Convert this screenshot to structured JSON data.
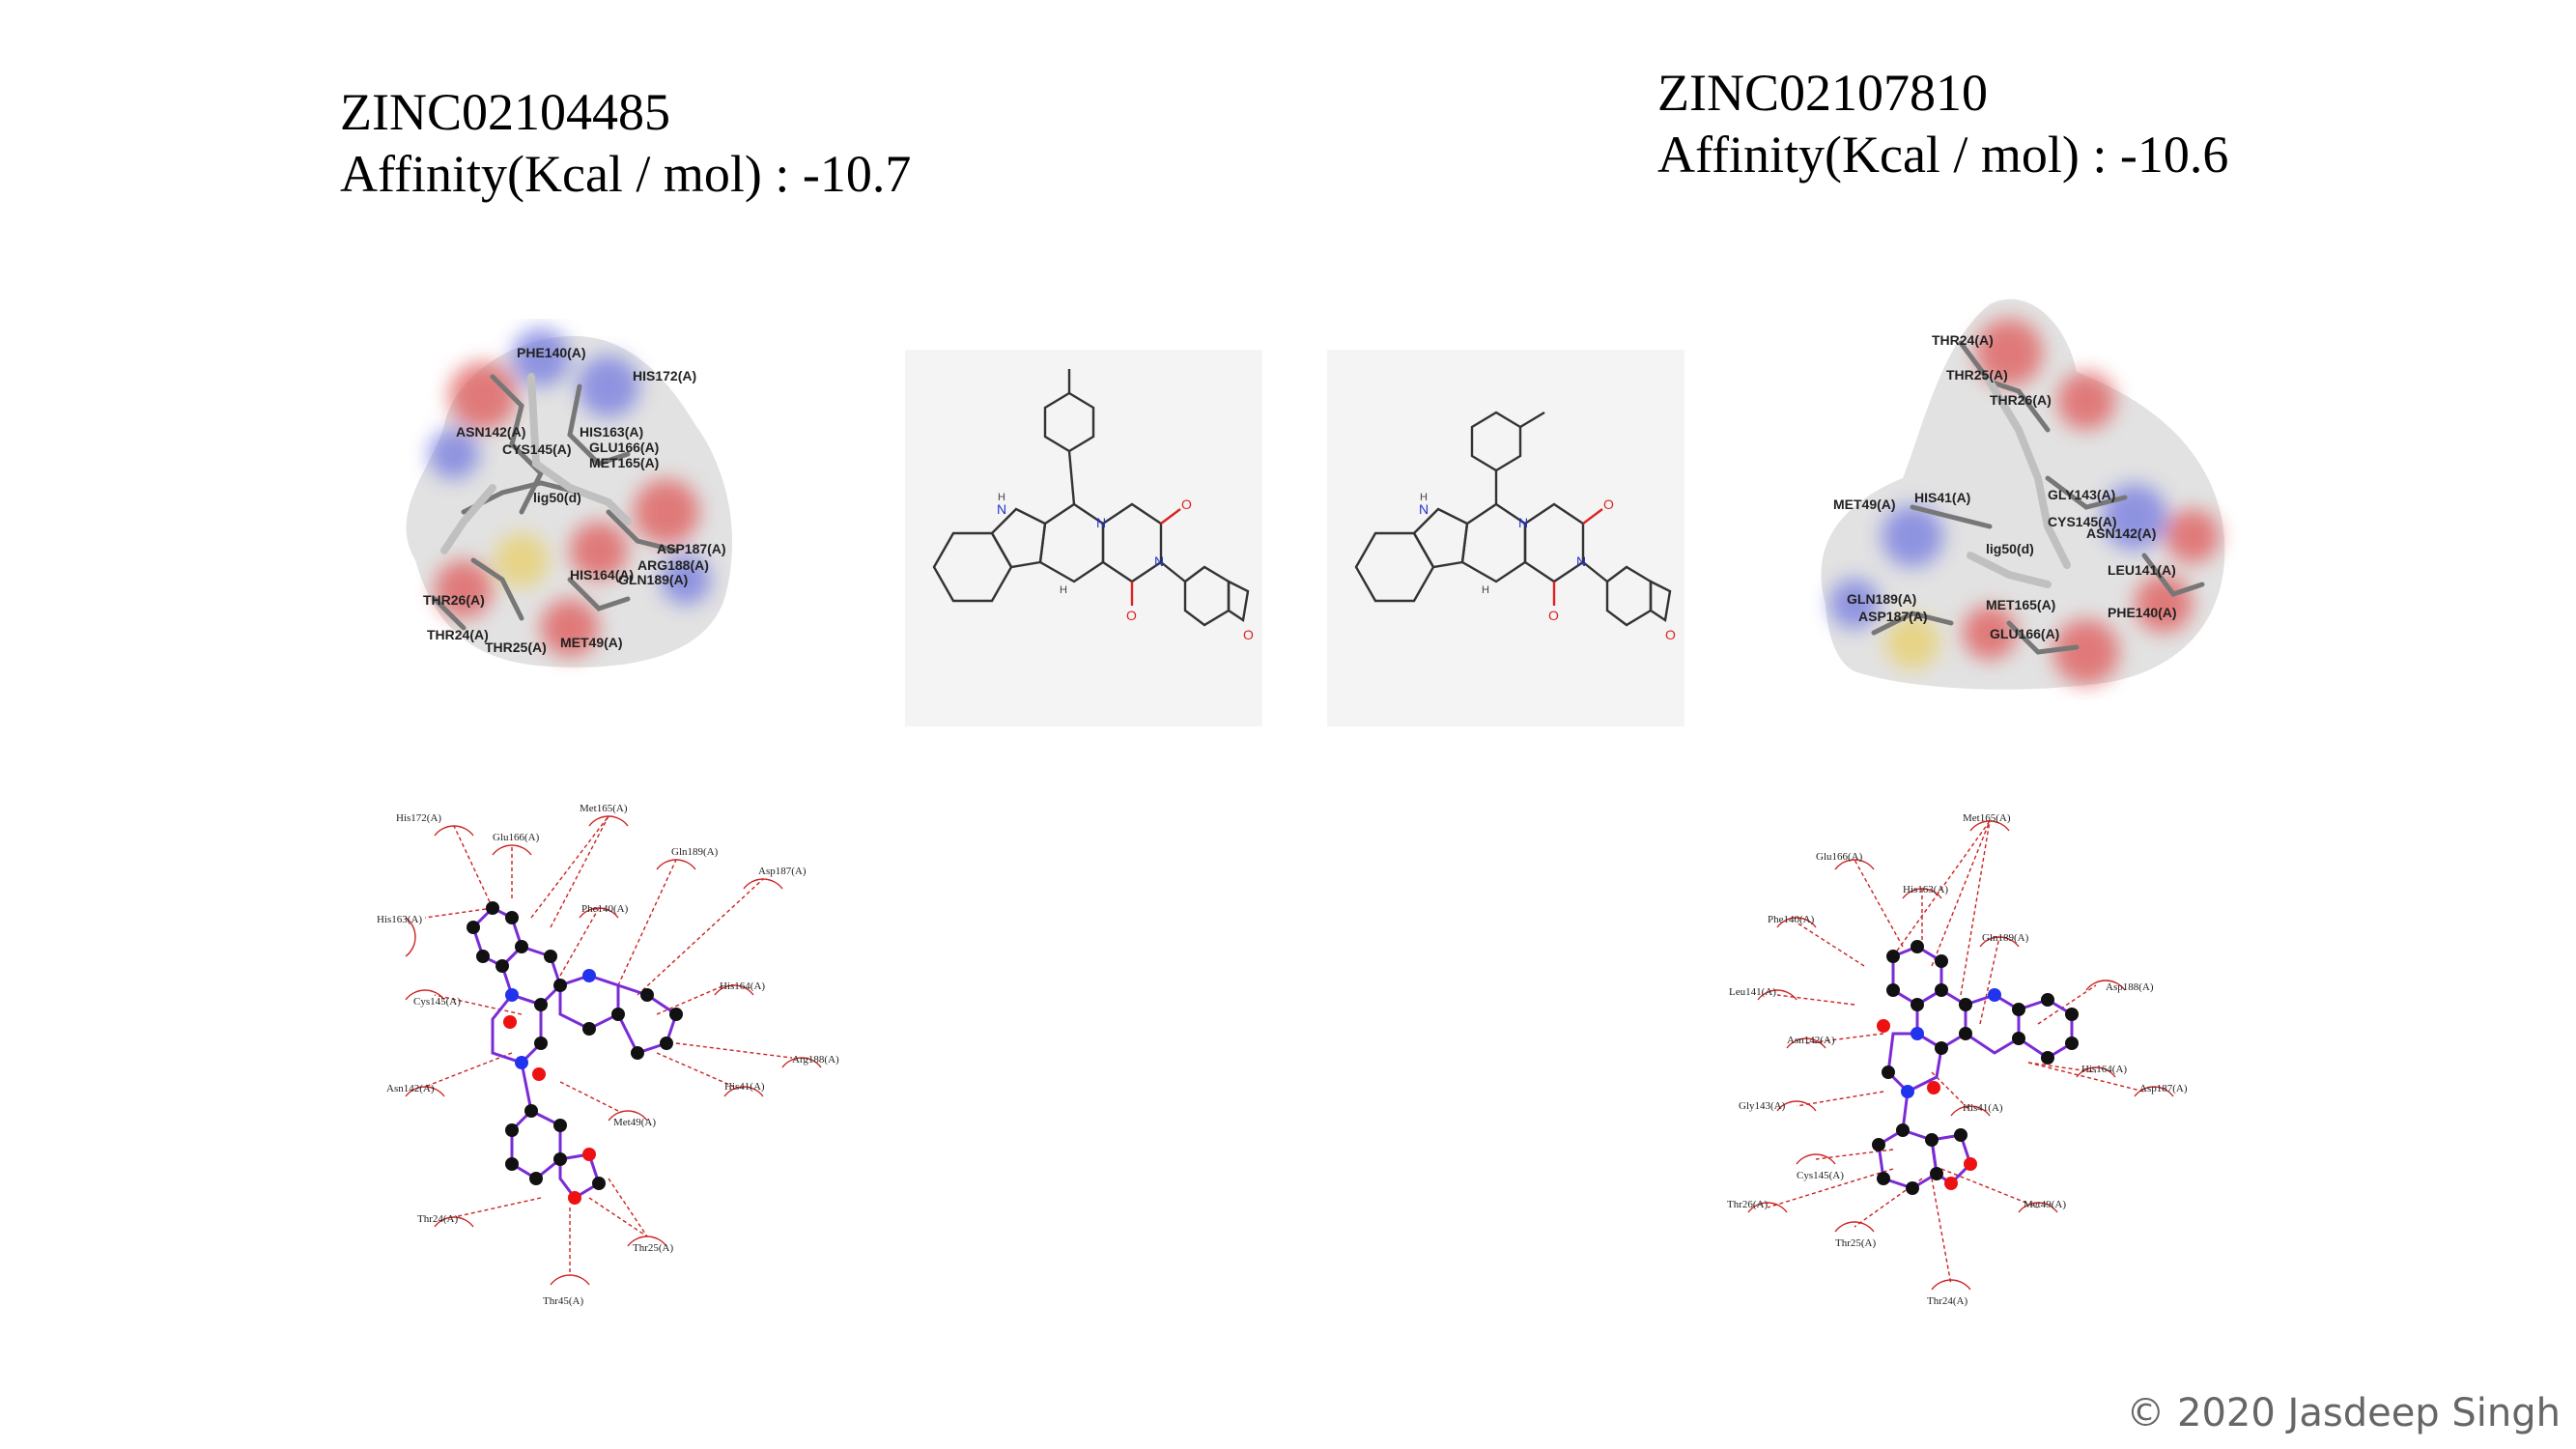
{
  "left": {
    "compound_id": "ZINC02104485",
    "affinity": "Affinity(Kcal / mol) : -10.7",
    "surface_labels": [
      "PHE140(A)",
      "HIS172(A)",
      "ASN142(A)",
      "CYS145(A)",
      "HIS163(A)",
      "GLU166(A)",
      "MET165(A)",
      "HIS164(A)",
      "GLN189(A)",
      "ASP187(A)",
      "ARG188(A)",
      "THR26(A)",
      "THR24(A)",
      "THR25(A)",
      "MET49(A)",
      "lig50(d)"
    ],
    "ligplot_labels": [
      "His172(A)",
      "Met165(A)",
      "Glu166(A)",
      "Gln189(A)",
      "Asp187(A)",
      "His163(A)",
      "Phe140(A)",
      "His164(A)",
      "Cys145(A)",
      "Arg188(A)",
      "Asn142(A)",
      "His41(A)",
      "Met49(A)",
      "Thr24(A)",
      "Thr25(A)",
      "Thr45(A)"
    ]
  },
  "right": {
    "compound_id": "ZINC02107810",
    "affinity": "Affinity(Kcal / mol) : -10.6",
    "surface_labels": [
      "THR24(A)",
      "THR25(A)",
      "THR26(A)",
      "MET49(A)",
      "HIS41(A)",
      "GLY143(A)",
      "CYS145(A)",
      "ASN142(A)",
      "lig50(d)",
      "LEU141(A)",
      "GLN189(A)",
      "ASP187(A)",
      "MET165(A)",
      "GLU166(A)",
      "PHE140(A)"
    ],
    "ligplot_labels": [
      "Met165(A)",
      "Glu166(A)",
      "His163(A)",
      "Phe140(A)",
      "Gln189(A)",
      "Leu141(A)",
      "Asp188(A)",
      "Asn142(A)",
      "His164(A)",
      "Asp187(A)",
      "Gly143(A)",
      "His41(A)",
      "Cys145(A)",
      "Thr26(A)",
      "Met49(A)",
      "Thr25(A)",
      "Thr24(A)"
    ]
  },
  "structure_atoms": {
    "nh": "N",
    "h_nh": "H",
    "n": "N",
    "o": "O",
    "h": "H"
  },
  "copyright": "© 2020 Jasdeep Singh"
}
